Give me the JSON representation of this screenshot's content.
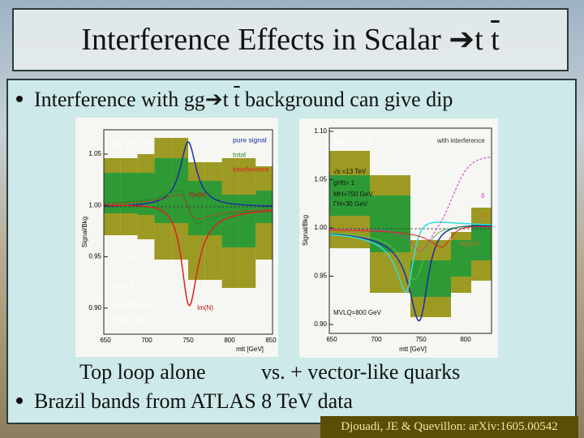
{
  "title": {
    "text": "Interference Effects in Scalar",
    "arrow": "➔",
    "quark": "t",
    "antiquark": "t"
  },
  "bullets": [
    {
      "text_before": "Interference with gg",
      "arrow": "➔",
      "quark": "t",
      "antiquark": "t",
      "text_after": "background can give dip"
    },
    {
      "text": "Brazil bands from ATLAS 8 TeV data"
    }
  ],
  "captions": {
    "left": "Top loop alone",
    "right": "vs. + vector-like quarks"
  },
  "citation": "Djouadi, JE & Quevillon: arXiv:1605.00542",
  "figures": [
    {
      "process": "gg→H→tt",
      "y_label": "Signal/Bkg",
      "x_label": "mtt [GeV]",
      "yticks": [
        "1.05",
        "1.00",
        "0.95",
        "0.90"
      ],
      "xticks": [
        "650",
        "700",
        "750",
        "800",
        "850"
      ],
      "legend": [
        "pure signal",
        "total",
        "interference"
      ],
      "annotations": [
        "Re(N)",
        "Im(N)",
        "√s =13 TeV",
        "gHtt= 1",
        "MH=750 GeV",
        "ΓH=30 GeV"
      ]
    },
    {
      "process": "gg→H→tt",
      "y_label": "Signal/Bkg",
      "x_label": "mtt [GeV]",
      "yticks": [
        "1.10",
        "1.05",
        "1.00",
        "0.95",
        "0.90"
      ],
      "xticks": [
        "650",
        "700",
        "750",
        "800"
      ],
      "legend": [
        "with interference"
      ],
      "annotations": [
        "√s =13 TeV",
        "gHtt= 1",
        "MH=750 GeV",
        "ΓH=30 GeV",
        "MVLQ=800 GeV",
        "δ",
        "Δ",
        "A(y)=0"
      ]
    }
  ]
}
